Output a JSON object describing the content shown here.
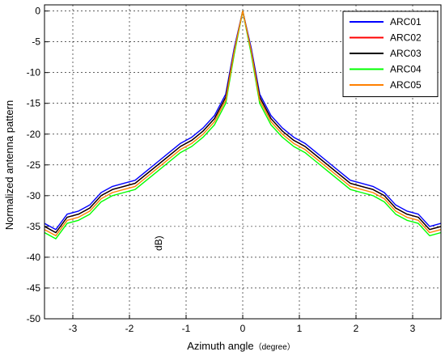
{
  "chart_data": {
    "type": "line",
    "xlabel": "Azimuth angle",
    "xlabel_unit": "（degree）",
    "ylabel": "Normalized antenna pattern",
    "xlim": [
      -3.5,
      3.5
    ],
    "ylim": [
      -50,
      1
    ],
    "x_ticks": [
      -3,
      -2,
      -1,
      0,
      1,
      2,
      3
    ],
    "y_ticks": [
      0,
      -5,
      -10,
      -15,
      -20,
      -25,
      -30,
      -35,
      -40,
      -45,
      -50
    ],
    "grid": true,
    "legend_position": "top-right",
    "stray_annotation": "dB)",
    "series_colors": {
      "ARC01": "#0000ff",
      "ARC02": "#ff0000",
      "ARC03": "#000000",
      "ARC04": "#00ff00",
      "ARC05": "#ff8000"
    },
    "series": [
      {
        "name": "ARC01",
        "x": [
          -3.5,
          -3.3,
          -3.1,
          -2.9,
          -2.7,
          -2.5,
          -2.3,
          -2.1,
          -1.9,
          -1.7,
          -1.5,
          -1.3,
          -1.1,
          -0.9,
          -0.7,
          -0.5,
          -0.3,
          -0.15,
          0,
          0.15,
          0.3,
          0.5,
          0.7,
          0.9,
          1.1,
          1.3,
          1.5,
          1.7,
          1.9,
          2.1,
          2.3,
          2.5,
          2.7,
          2.9,
          3.1,
          3.3,
          3.5
        ],
        "values": [
          -34.5,
          -35.5,
          -33,
          -32.5,
          -31.5,
          -29.5,
          -28.5,
          -28,
          -27.5,
          -26,
          -24.5,
          -23,
          -21.5,
          -20.5,
          -19,
          -17,
          -13.5,
          -6,
          0,
          -6,
          -13.5,
          -17,
          -19,
          -20.5,
          -21.5,
          -23,
          -24.5,
          -26,
          -27.5,
          -28,
          -28.5,
          -29.5,
          -31.5,
          -32.5,
          -33,
          -35,
          -34.5
        ]
      },
      {
        "name": "ARC02",
        "x": [
          -3.5,
          -3.3,
          -3.1,
          -2.9,
          -2.7,
          -2.5,
          -2.3,
          -2.1,
          -1.9,
          -1.7,
          -1.5,
          -1.3,
          -1.1,
          -0.9,
          -0.7,
          -0.5,
          -0.3,
          -0.15,
          0,
          0.15,
          0.3,
          0.5,
          0.7,
          0.9,
          1.1,
          1.3,
          1.5,
          1.7,
          1.9,
          2.1,
          2.3,
          2.5,
          2.7,
          2.9,
          3.1,
          3.3,
          3.5
        ],
        "values": [
          -35,
          -36,
          -33.5,
          -33,
          -32,
          -30,
          -29,
          -28.5,
          -28,
          -26.5,
          -25,
          -23.5,
          -22,
          -21,
          -19.5,
          -17.5,
          -14,
          -6.5,
          0,
          -6.5,
          -14,
          -17.5,
          -19.5,
          -21,
          -22,
          -23.5,
          -25,
          -26.5,
          -28,
          -28.5,
          -29,
          -30,
          -32,
          -33,
          -33.5,
          -35.5,
          -35
        ]
      },
      {
        "name": "ARC03",
        "x": [
          -3.5,
          -3.3,
          -3.1,
          -2.9,
          -2.7,
          -2.5,
          -2.3,
          -2.1,
          -1.9,
          -1.7,
          -1.5,
          -1.3,
          -1.1,
          -0.9,
          -0.7,
          -0.5,
          -0.3,
          -0.15,
          0,
          0.15,
          0.3,
          0.5,
          0.7,
          0.9,
          1.1,
          1.3,
          1.5,
          1.7,
          1.9,
          2.1,
          2.3,
          2.5,
          2.7,
          2.9,
          3.1,
          3.3,
          3.5
        ],
        "values": [
          -35,
          -36,
          -33.5,
          -33,
          -32,
          -30,
          -29,
          -28.5,
          -28,
          -26.5,
          -25,
          -23.5,
          -22,
          -21,
          -19.5,
          -17.5,
          -14,
          -6.5,
          0,
          -6.5,
          -14,
          -17.5,
          -19.5,
          -21,
          -22,
          -23.5,
          -25,
          -26.5,
          -28,
          -28.5,
          -29,
          -30,
          -32,
          -33,
          -33.5,
          -35.5,
          -35
        ]
      },
      {
        "name": "ARC04",
        "x": [
          -3.5,
          -3.3,
          -3.1,
          -2.9,
          -2.7,
          -2.5,
          -2.3,
          -2.1,
          -1.9,
          -1.7,
          -1.5,
          -1.3,
          -1.1,
          -0.9,
          -0.7,
          -0.5,
          -0.3,
          -0.15,
          0,
          0.15,
          0.3,
          0.5,
          0.7,
          0.9,
          1.1,
          1.3,
          1.5,
          1.7,
          1.9,
          2.1,
          2.3,
          2.5,
          2.7,
          2.9,
          3.1,
          3.3,
          3.5
        ],
        "values": [
          -36,
          -37,
          -34.5,
          -34,
          -33,
          -31,
          -30,
          -29.5,
          -29,
          -27.5,
          -26,
          -24.5,
          -23,
          -22,
          -20.5,
          -18.5,
          -15,
          -7,
          0,
          -7,
          -15,
          -18.5,
          -20.5,
          -22,
          -23,
          -24.5,
          -26,
          -27.5,
          -29,
          -29.5,
          -30,
          -31,
          -33,
          -34,
          -34.5,
          -36.5,
          -36
        ]
      },
      {
        "name": "ARC05",
        "x": [
          -3.5,
          -3.3,
          -3.1,
          -2.9,
          -2.7,
          -2.5,
          -2.3,
          -2.1,
          -1.9,
          -1.7,
          -1.5,
          -1.3,
          -1.1,
          -0.9,
          -0.7,
          -0.5,
          -0.3,
          -0.15,
          0,
          0.15,
          0.3,
          0.5,
          0.7,
          0.9,
          1.1,
          1.3,
          1.5,
          1.7,
          1.9,
          2.1,
          2.3,
          2.5,
          2.7,
          2.9,
          3.1,
          3.3,
          3.5
        ],
        "values": [
          -35.5,
          -36.5,
          -34,
          -33.5,
          -32.5,
          -30.5,
          -29.5,
          -29,
          -28.5,
          -27,
          -25.5,
          -24,
          -22.5,
          -21.5,
          -20,
          -18,
          -14.5,
          -6.5,
          0,
          -6.5,
          -14.5,
          -18,
          -20,
          -21.5,
          -22.5,
          -24,
          -25.5,
          -27,
          -28.5,
          -29,
          -29.5,
          -30.5,
          -32.5,
          -33.5,
          -34,
          -36,
          -35.5
        ]
      }
    ]
  }
}
